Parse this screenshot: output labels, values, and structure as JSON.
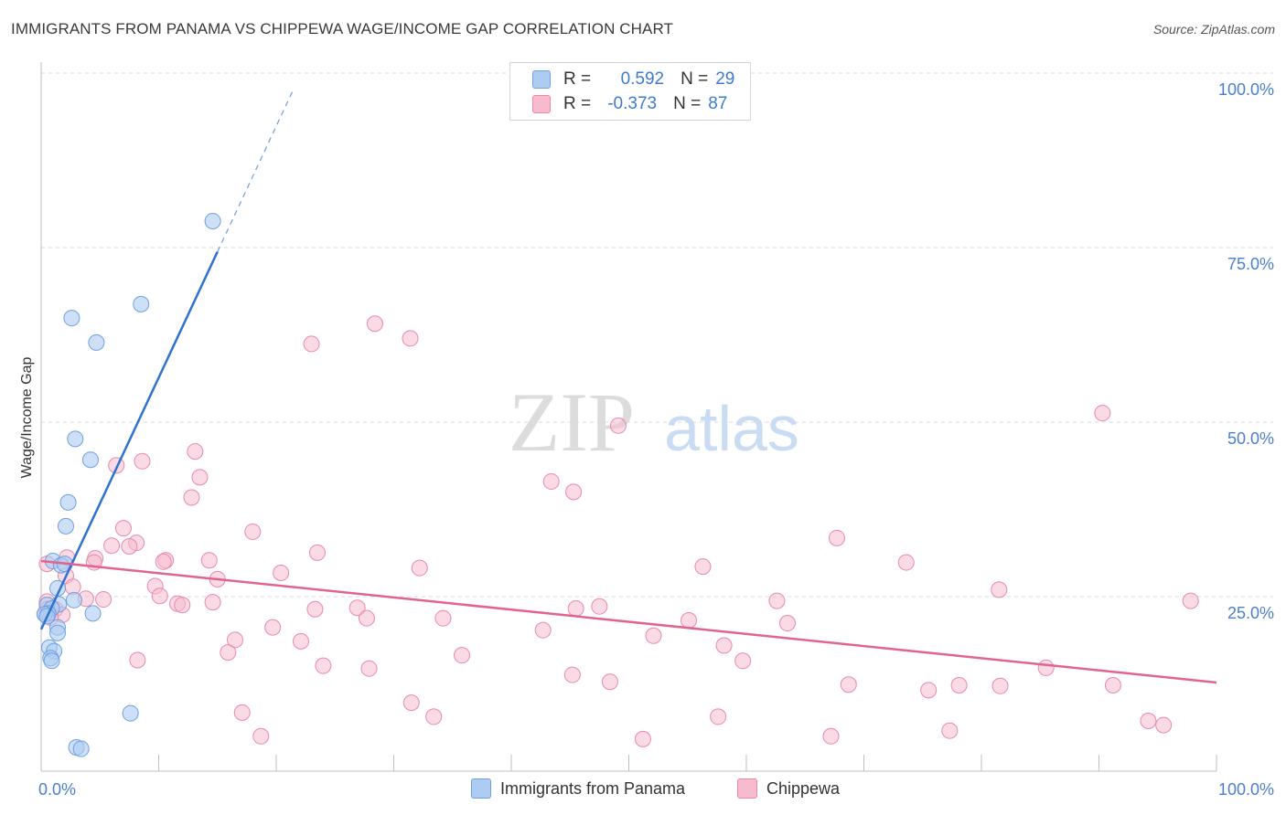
{
  "title": "IMMIGRANTS FROM PANAMA VS CHIPPEWA WAGE/INCOME GAP CORRELATION CHART",
  "source": "Source: ZipAtlas.com",
  "watermark": {
    "zip": "ZIP",
    "atlas": "atlas"
  },
  "legend": {
    "rows": [
      {
        "r_label": "R =",
        "r_value": "0.592",
        "n_label": "N =",
        "n_value": "29"
      },
      {
        "r_label": "R =",
        "r_value": "-0.373",
        "n_label": "N =",
        "n_value": "87"
      }
    ]
  },
  "bottom_legend": {
    "series1": "Immigrants from Panama",
    "series2": "Chippewa"
  },
  "colors": {
    "blue_fill": "#aecbf2",
    "blue_stroke": "#6fa0df",
    "blue_line": "#2f72cf",
    "pink_fill": "#f6bccd",
    "pink_stroke": "#e98aa7",
    "pink_line": "#e2638f",
    "axis_text": "#4a7fcf",
    "grid": "#d8d8d8"
  },
  "chart_data": {
    "type": "scatter",
    "xlabel": "",
    "ylabel": "Wage/Income Gap",
    "xlim": [
      0,
      100
    ],
    "ylim": [
      0,
      100
    ],
    "x_tick_labels": {
      "min": "0.0%",
      "max": "100.0%"
    },
    "y_tick_labels": [
      {
        "value": 25,
        "label": "25.0%"
      },
      {
        "value": 50,
        "label": "50.0%"
      },
      {
        "value": 75,
        "label": "75.0%"
      },
      {
        "value": 100,
        "label": "100.0%"
      }
    ],
    "series": [
      {
        "name": "Immigrants from Panama",
        "r": 0.592,
        "n": 29,
        "trend": {
          "x0": 0.0,
          "y0": 20.3,
          "x1": 15.0,
          "y1": 74.4,
          "dash_x1": 21.5,
          "dash_y1": 97.8
        },
        "points": [
          [
            14.6,
            78.8
          ],
          [
            8.5,
            66.9
          ],
          [
            2.6,
            64.9
          ],
          [
            4.7,
            61.4
          ],
          [
            2.9,
            47.6
          ],
          [
            4.2,
            44.6
          ],
          [
            2.3,
            38.5
          ],
          [
            2.1,
            35.1
          ],
          [
            1.0,
            30.1
          ],
          [
            1.7,
            29.5
          ],
          [
            2.0,
            29.7
          ],
          [
            1.4,
            26.2
          ],
          [
            2.8,
            24.5
          ],
          [
            1.5,
            23.9
          ],
          [
            0.5,
            23.8
          ],
          [
            0.9,
            23.3
          ],
          [
            0.6,
            22.6
          ],
          [
            0.3,
            22.5
          ],
          [
            4.4,
            22.6
          ],
          [
            0.5,
            22.2
          ],
          [
            1.4,
            20.6
          ],
          [
            1.4,
            19.8
          ],
          [
            0.7,
            17.7
          ],
          [
            1.1,
            17.2
          ],
          [
            0.8,
            16.2
          ],
          [
            0.9,
            15.8
          ],
          [
            7.6,
            8.3
          ],
          [
            3.0,
            3.4
          ],
          [
            3.4,
            3.2
          ]
        ]
      },
      {
        "name": "Chippewa",
        "r": -0.373,
        "n": 87,
        "trend": {
          "x0": 0.0,
          "y0": 30.1,
          "x1": 100.0,
          "y1": 12.7
        },
        "points": [
          [
            28.4,
            64.1
          ],
          [
            23.0,
            61.2
          ],
          [
            31.4,
            62.0
          ],
          [
            49.1,
            49.5
          ],
          [
            90.3,
            51.3
          ],
          [
            13.1,
            45.8
          ],
          [
            8.6,
            44.4
          ],
          [
            6.4,
            43.8
          ],
          [
            13.5,
            42.1
          ],
          [
            43.4,
            41.5
          ],
          [
            45.3,
            40.0
          ],
          [
            12.8,
            39.2
          ],
          [
            7.0,
            34.8
          ],
          [
            18.0,
            34.3
          ],
          [
            8.1,
            32.7
          ],
          [
            7.5,
            32.2
          ],
          [
            6.0,
            32.3
          ],
          [
            23.5,
            31.3
          ],
          [
            14.3,
            30.2
          ],
          [
            10.6,
            30.2
          ],
          [
            10.4,
            30.0
          ],
          [
            4.6,
            30.5
          ],
          [
            2.2,
            30.6
          ],
          [
            4.5,
            29.9
          ],
          [
            0.5,
            29.7
          ],
          [
            2.1,
            28.0
          ],
          [
            20.4,
            28.4
          ],
          [
            32.2,
            29.1
          ],
          [
            56.3,
            29.3
          ],
          [
            67.7,
            33.4
          ],
          [
            73.6,
            29.9
          ],
          [
            15.0,
            27.5
          ],
          [
            9.7,
            26.5
          ],
          [
            2.7,
            26.4
          ],
          [
            10.1,
            25.1
          ],
          [
            3.8,
            24.7
          ],
          [
            5.3,
            24.6
          ],
          [
            0.5,
            24.3
          ],
          [
            14.6,
            24.2
          ],
          [
            11.6,
            24.0
          ],
          [
            12.0,
            23.8
          ],
          [
            23.3,
            23.2
          ],
          [
            26.9,
            23.4
          ],
          [
            45.5,
            23.3
          ],
          [
            47.5,
            23.6
          ],
          [
            62.6,
            24.4
          ],
          [
            0.5,
            23.2
          ],
          [
            1.2,
            23.2
          ],
          [
            0.3,
            22.5
          ],
          [
            1.8,
            22.4
          ],
          [
            0.8,
            22.0
          ],
          [
            27.7,
            21.9
          ],
          [
            34.2,
            21.9
          ],
          [
            97.8,
            24.4
          ],
          [
            81.5,
            26.0
          ],
          [
            63.5,
            21.2
          ],
          [
            55.1,
            21.6
          ],
          [
            19.7,
            20.6
          ],
          [
            42.7,
            20.2
          ],
          [
            22.1,
            18.6
          ],
          [
            16.5,
            18.8
          ],
          [
            52.1,
            19.4
          ],
          [
            58.1,
            18.0
          ],
          [
            35.8,
            16.6
          ],
          [
            15.9,
            17.0
          ],
          [
            8.2,
            15.9
          ],
          [
            24.0,
            15.1
          ],
          [
            27.9,
            14.7
          ],
          [
            45.2,
            13.8
          ],
          [
            48.4,
            12.8
          ],
          [
            68.7,
            12.4
          ],
          [
            59.7,
            15.8
          ],
          [
            81.6,
            12.2
          ],
          [
            75.5,
            11.6
          ],
          [
            78.1,
            12.3
          ],
          [
            85.5,
            14.8
          ],
          [
            91.2,
            12.3
          ],
          [
            31.5,
            9.8
          ],
          [
            17.1,
            8.4
          ],
          [
            33.4,
            7.8
          ],
          [
            57.6,
            7.8
          ],
          [
            94.2,
            7.2
          ],
          [
            95.5,
            6.6
          ],
          [
            77.3,
            5.8
          ],
          [
            18.7,
            5.0
          ],
          [
            67.2,
            5.0
          ],
          [
            51.2,
            4.6
          ]
        ]
      }
    ]
  }
}
